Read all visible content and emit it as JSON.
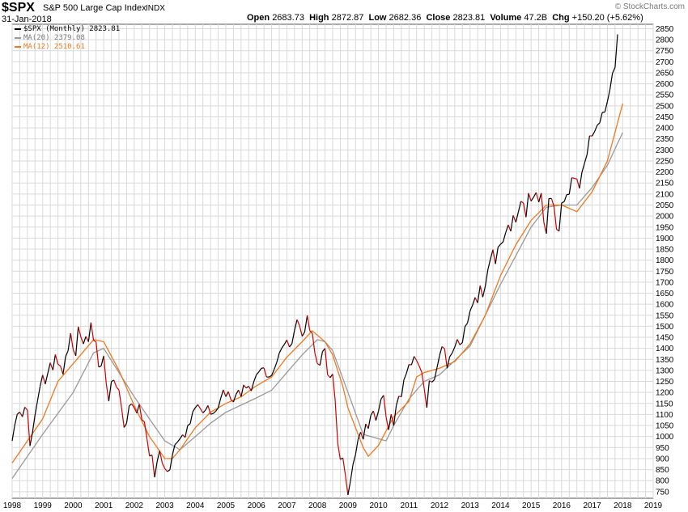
{
  "header": {
    "symbol": "$SPX",
    "name": "S&P 500 Large Cap Index",
    "exchange": "INDX",
    "date": "31-Jan-2018",
    "open_label": "Open",
    "open": "2683.73",
    "high_label": "High",
    "high": "2872.87",
    "low_label": "Low",
    "low": "2682.36",
    "close_label": "Close",
    "close": "2823.81",
    "volume_label": "Volume",
    "volume": "47.2B",
    "chg_label": "Chg",
    "chg": "+150.20 (+5.62%)",
    "brand": "© StockCharts.com"
  },
  "legend": [
    {
      "label": "$SPX (Monthly) 2823.81",
      "color": "#000000"
    },
    {
      "label": "MA(20) 2379.08",
      "color": "#999999"
    },
    {
      "label": "MA(12) 2510.61",
      "color": "#f07820"
    }
  ],
  "colors": {
    "up": "#000000",
    "down": "#cc0000",
    "ma20": "#999999",
    "ma12": "#f07820",
    "grid": "#d9d9d9",
    "bg": "#ffffff"
  },
  "chart_data": {
    "type": "line",
    "title": "$SPX S&P 500 Large Cap Index",
    "x_ticks": [
      "1998",
      "1999",
      "2000",
      "2001",
      "2002",
      "2003",
      "2004",
      "2005",
      "2006",
      "2007",
      "2008",
      "2009",
      "2010",
      "2011",
      "2012",
      "2013",
      "2014",
      "2015",
      "2016",
      "2017",
      "2018",
      "2019"
    ],
    "y_ticks": [
      750,
      800,
      850,
      900,
      950,
      1000,
      1050,
      1100,
      1150,
      1200,
      1250,
      1300,
      1350,
      1400,
      1450,
      1500,
      1550,
      1600,
      1650,
      1700,
      1750,
      1800,
      1850,
      1900,
      1950,
      2000,
      2050,
      2100,
      2150,
      2200,
      2250,
      2300,
      2350,
      2400,
      2450,
      2500,
      2550,
      2600,
      2650,
      2700,
      2750,
      2800,
      2850
    ],
    "xlim": [
      1998.0,
      2019.0
    ],
    "ylim": [
      720,
      2870
    ],
    "y_axis_side": "right",
    "grid": true,
    "legend_position": "top-left",
    "series": [
      {
        "name": "$SPX (Monthly)",
        "start": "1998-01",
        "values": [
          980,
          1049,
          1101,
          1111,
          1090,
          1133,
          1120,
          957,
          1017,
          1098,
          1163,
          1229,
          1279,
          1238,
          1286,
          1335,
          1301,
          1372,
          1328,
          1320,
          1282,
          1362,
          1389,
          1469,
          1394,
          1366,
          1498,
          1452,
          1420,
          1454,
          1430,
          1517,
          1436,
          1429,
          1315,
          1320,
          1366,
          1240,
          1160,
          1249,
          1256,
          1224,
          1211,
          1133,
          1041,
          1060,
          1139,
          1148,
          1130,
          1106,
          1147,
          1076,
          1067,
          990,
          912,
          916,
          815,
          885,
          936,
          880,
          855,
          841,
          849,
          916,
          963,
          975,
          990,
          1008,
          996,
          1050,
          1058,
          1112,
          1131,
          1145,
          1126,
          1107,
          1120,
          1141,
          1101,
          1104,
          1114,
          1130,
          1174,
          1212,
          1181,
          1204,
          1167,
          1157,
          1191,
          1211,
          1181,
          1234,
          1220,
          1228,
          1207,
          1249,
          1280,
          1294,
          1310,
          1311,
          1270,
          1270,
          1277,
          1304,
          1336,
          1378,
          1401,
          1418,
          1438,
          1406,
          1421,
          1482,
          1530,
          1503,
          1455,
          1474,
          1549,
          1481,
          1468,
          1379,
          1331,
          1323,
          1385,
          1400,
          1280,
          1267,
          1283,
          1164,
          969,
          896,
          903,
          825,
          735,
          798,
          873,
          919,
          987,
          1020,
          987,
          1057,
          1036,
          1096,
          1116,
          1073,
          1115,
          1169,
          1187,
          1089,
          1030,
          1101,
          1049,
          1141,
          1183,
          1180,
          1257,
          1286,
          1327,
          1325,
          1364,
          1345,
          1320,
          1292,
          1218,
          1131,
          1253,
          1247,
          1258,
          1312,
          1366,
          1408,
          1398,
          1310,
          1362,
          1379,
          1406,
          1441,
          1416,
          1426,
          1498,
          1515,
          1569,
          1597,
          1631,
          1606,
          1685,
          1632,
          1682,
          1756,
          1805,
          1848,
          1783,
          1859,
          1872,
          1883,
          1924,
          1960,
          1931,
          2003,
          1972,
          2018,
          2067,
          2059,
          1995,
          2104,
          2068,
          2086,
          2107,
          2063,
          2104,
          1972,
          1920,
          2079,
          2080,
          2044,
          1940,
          1932,
          2060,
          2065,
          2097,
          2099,
          2174,
          2171,
          2168,
          2126,
          2199,
          2239,
          2279,
          2364,
          2363,
          2384,
          2412,
          2423,
          2470,
          2472,
          2519,
          2575,
          2648,
          2674,
          2824
        ]
      },
      {
        "name": "MA(20)",
        "points": [
          [
            1998.0,
            810
          ],
          [
            1999.0,
            1010
          ],
          [
            2000.0,
            1200
          ],
          [
            2000.67,
            1380
          ],
          [
            2001.0,
            1400
          ],
          [
            2001.5,
            1290
          ],
          [
            2002.0,
            1180
          ],
          [
            2002.5,
            1080
          ],
          [
            2003.0,
            980
          ],
          [
            2003.5,
            940
          ],
          [
            2004.0,
            1000
          ],
          [
            2004.5,
            1060
          ],
          [
            2005.0,
            1110
          ],
          [
            2006.0,
            1175
          ],
          [
            2006.5,
            1210
          ],
          [
            2007.0,
            1290
          ],
          [
            2007.5,
            1370
          ],
          [
            2008.0,
            1440
          ],
          [
            2008.25,
            1430
          ],
          [
            2008.5,
            1390
          ],
          [
            2009.0,
            1200
          ],
          [
            2009.5,
            1010
          ],
          [
            2010.0,
            990
          ],
          [
            2010.25,
            980
          ],
          [
            2010.5,
            1050
          ],
          [
            2011.0,
            1170
          ],
          [
            2011.5,
            1250
          ],
          [
            2012.0,
            1280
          ],
          [
            2013.0,
            1410
          ],
          [
            2014.0,
            1690
          ],
          [
            2015.0,
            1950
          ],
          [
            2015.5,
            2040
          ],
          [
            2016.0,
            2050
          ],
          [
            2016.5,
            2050
          ],
          [
            2017.0,
            2130
          ],
          [
            2017.5,
            2230
          ],
          [
            2018.0,
            2379
          ]
        ]
      },
      {
        "name": "MA(12)",
        "points": [
          [
            1998.0,
            880
          ],
          [
            1999.0,
            1080
          ],
          [
            1999.5,
            1250
          ],
          [
            2000.0,
            1330
          ],
          [
            2000.67,
            1440
          ],
          [
            2001.0,
            1430
          ],
          [
            2001.5,
            1300
          ],
          [
            2002.0,
            1140
          ],
          [
            2002.5,
            1000
          ],
          [
            2003.0,
            900
          ],
          [
            2003.25,
            900
          ],
          [
            2003.5,
            940
          ],
          [
            2004.0,
            1040
          ],
          [
            2004.5,
            1110
          ],
          [
            2005.0,
            1150
          ],
          [
            2005.5,
            1180
          ],
          [
            2006.0,
            1230
          ],
          [
            2006.5,
            1270
          ],
          [
            2007.0,
            1360
          ],
          [
            2007.5,
            1430
          ],
          [
            2007.83,
            1480
          ],
          [
            2008.25,
            1430
          ],
          [
            2008.5,
            1370
          ],
          [
            2008.83,
            1230
          ],
          [
            2009.0,
            1130
          ],
          [
            2009.5,
            950
          ],
          [
            2009.67,
            910
          ],
          [
            2010.0,
            960
          ],
          [
            2010.5,
            1090
          ],
          [
            2011.0,
            1160
          ],
          [
            2011.25,
            1270
          ],
          [
            2011.5,
            1290
          ],
          [
            2012.0,
            1310
          ],
          [
            2012.5,
            1340
          ],
          [
            2013.0,
            1420
          ],
          [
            2013.5,
            1550
          ],
          [
            2014.0,
            1730
          ],
          [
            2014.5,
            1870
          ],
          [
            2015.0,
            1980
          ],
          [
            2015.5,
            2050
          ],
          [
            2016.0,
            2050
          ],
          [
            2016.5,
            2020
          ],
          [
            2017.0,
            2110
          ],
          [
            2017.5,
            2250
          ],
          [
            2018.0,
            2510
          ]
        ]
      }
    ]
  }
}
